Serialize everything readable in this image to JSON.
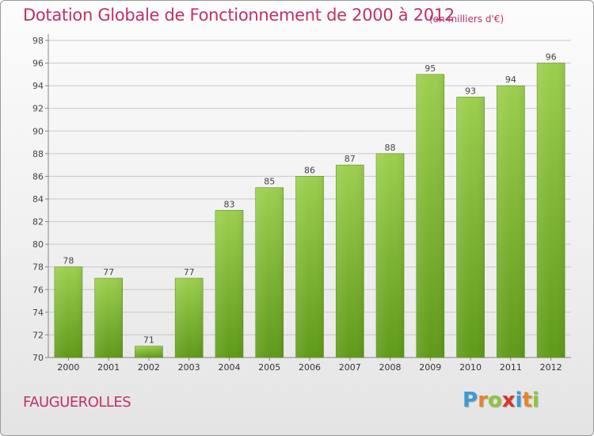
{
  "header": {
    "title": "Dotation Globale de Fonctionnement de 2000 à 2012",
    "unit_note": "(en milliers d'€)"
  },
  "footer": {
    "town": "FAUGUEROLLES",
    "logo_letters": [
      "P",
      "r",
      "o",
      "x",
      "i",
      "t",
      "i"
    ],
    "logo_colors": [
      "#3a9ad9",
      "#e8832a",
      "#8cc63f",
      "#d9332d",
      "#3a9ad9",
      "#e8832a",
      "#8cc63f"
    ]
  },
  "chart_data": {
    "type": "bar",
    "title": "Dotation Globale de Fonctionnement de 2000 à 2012",
    "subtitle": "(en milliers d'€)",
    "categories": [
      "2000",
      "2001",
      "2002",
      "2003",
      "2004",
      "2005",
      "2006",
      "2007",
      "2008",
      "2009",
      "2010",
      "2011",
      "2012"
    ],
    "values": [
      78,
      77,
      71,
      77,
      83,
      85,
      86,
      87,
      88,
      95,
      93,
      94,
      96
    ],
    "data_labels": [
      "78",
      "77",
      "71",
      "77",
      "83",
      "85",
      "86",
      "87",
      "88",
      "95",
      "93",
      "94",
      "96"
    ],
    "ylim": [
      70,
      98
    ],
    "yticks": [
      70,
      72,
      74,
      76,
      78,
      80,
      82,
      84,
      86,
      88,
      90,
      92,
      94,
      96,
      98
    ],
    "grid": true,
    "bar_color_top": "#9ccf4e",
    "bar_color_bottom": "#5f9a19"
  }
}
